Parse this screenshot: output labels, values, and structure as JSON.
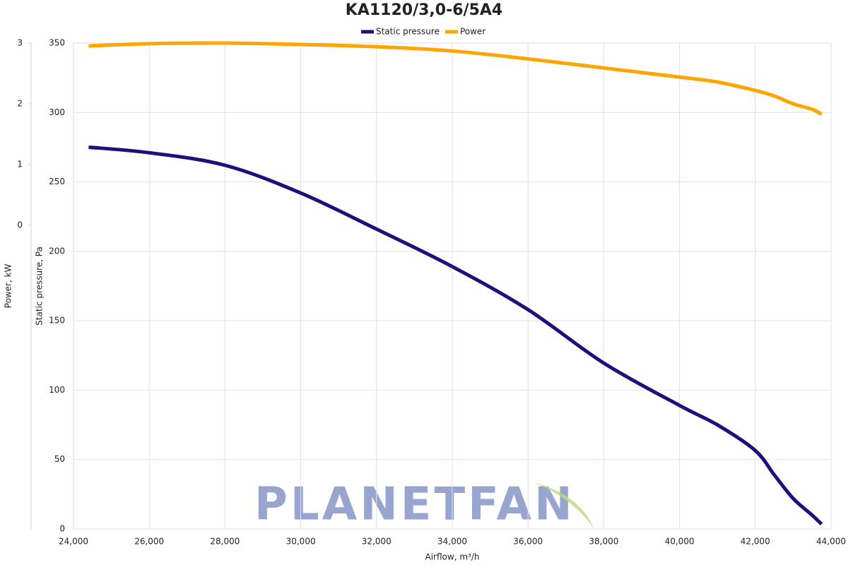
{
  "chart_data": {
    "type": "line",
    "title": "KA1120/3,0-6/5A4",
    "xlabel": "Airflow, m³/h",
    "ylabel": "Static pressure, Pa",
    "y2label": "Power, kW",
    "watermark": "PLANETFAN",
    "x": [
      24400,
      26000,
      28000,
      30000,
      32000,
      34000,
      36000,
      38000,
      40000,
      41000,
      42000,
      42500,
      43000,
      43500,
      43750
    ],
    "series": [
      {
        "name": "Static pressure",
        "color": "#1f0f7a",
        "values": [
          275,
          271,
          262,
          242,
          216,
          189,
          158,
          119.5,
          89,
          75,
          56.5,
          39,
          22,
          10,
          3.5
        ]
      },
      {
        "name": "Power",
        "color": "#ffa500",
        "axis": "y2",
        "values": [
          2.953,
          2.99,
          3.0,
          2.977,
          2.94,
          2.87,
          2.74,
          2.59,
          2.44,
          2.36,
          2.22,
          2.13,
          2.0,
          1.91,
          1.83
        ]
      }
    ],
    "xlim": [
      24000,
      44000
    ],
    "xticks": [
      {
        "value": 24000,
        "label": "24,000"
      },
      {
        "value": 26000,
        "label": "26,000"
      },
      {
        "value": 28000,
        "label": "28,000"
      },
      {
        "value": 30000,
        "label": "30,000"
      },
      {
        "value": 32000,
        "label": "32,000"
      },
      {
        "value": 34000,
        "label": "34,000"
      },
      {
        "value": 36000,
        "label": "36,000"
      },
      {
        "value": 38000,
        "label": "38,000"
      },
      {
        "value": 40000,
        "label": "40,000"
      },
      {
        "value": 42000,
        "label": "42,000"
      },
      {
        "value": 44000,
        "label": "44,000"
      }
    ],
    "ylim": [
      0,
      350
    ],
    "yticks": [
      0,
      50,
      100,
      150,
      200,
      250,
      300,
      350
    ],
    "y2lim": [
      -5,
      3
    ],
    "y2ticks": [
      0,
      1,
      2,
      3
    ],
    "grid": true,
    "legend": "top"
  }
}
